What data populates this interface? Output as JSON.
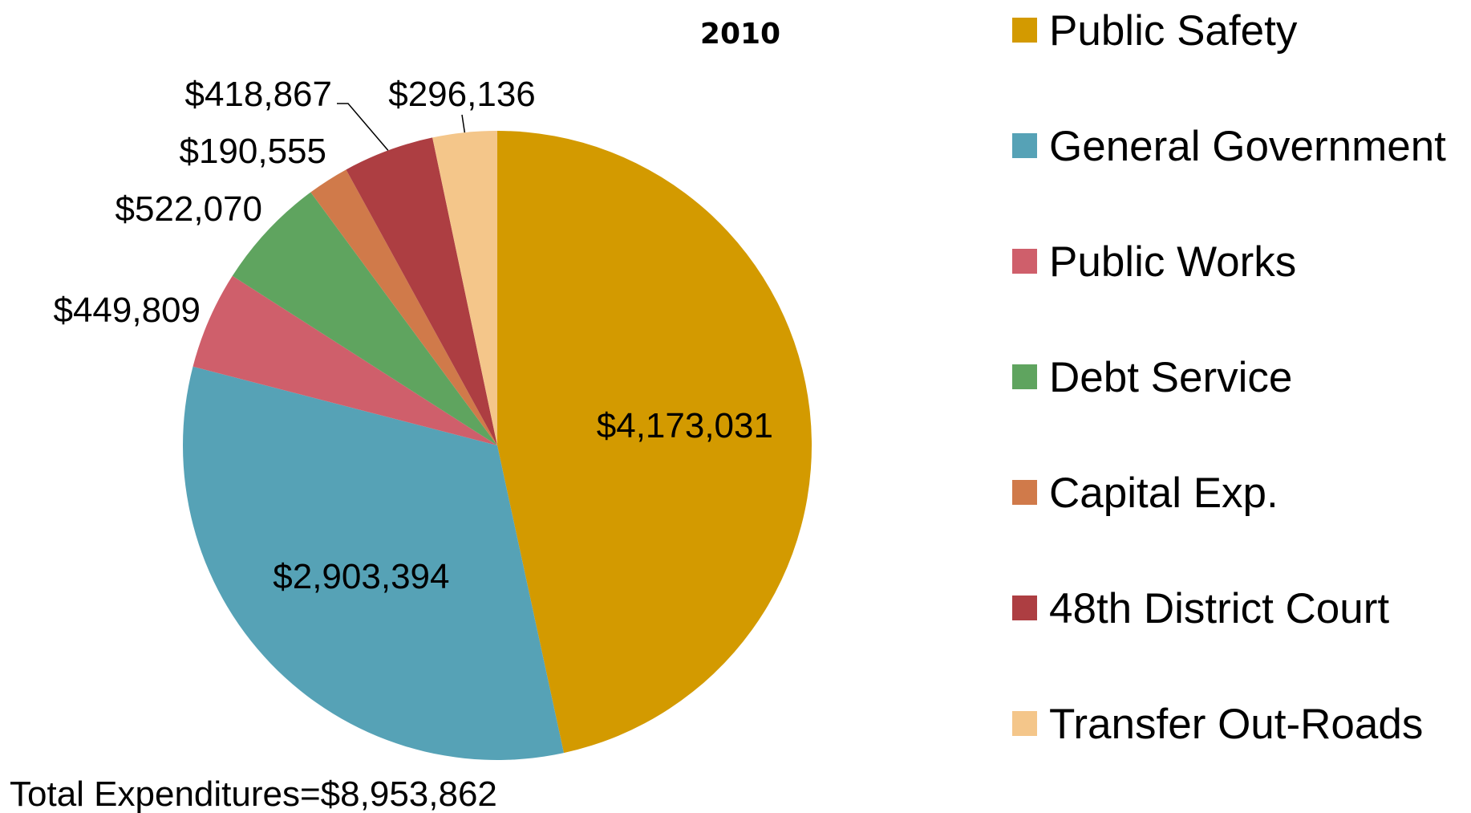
{
  "chart_data": {
    "type": "pie",
    "title": "2010",
    "categories": [
      "Public Safety",
      "General Government",
      "Public Works",
      "Debt Service",
      "Capital Exp.",
      "48th District Court",
      "Transfer Out-Roads"
    ],
    "values": [
      4173031,
      2903394,
      449809,
      522070,
      190555,
      418867,
      296136
    ],
    "value_labels": [
      "$4,173,031",
      "$2,903,394",
      "$449,809",
      "$522,070",
      "$190,555",
      "$418,867",
      "$296,136"
    ],
    "colors": [
      "#d39a00",
      "#56a2b6",
      "#cf5f6b",
      "#5fa45f",
      "#d07a4a",
      "#ad3e42",
      "#f4c68a"
    ],
    "annotation": "Total Expenditures=$8,953,862",
    "legend": "right"
  }
}
